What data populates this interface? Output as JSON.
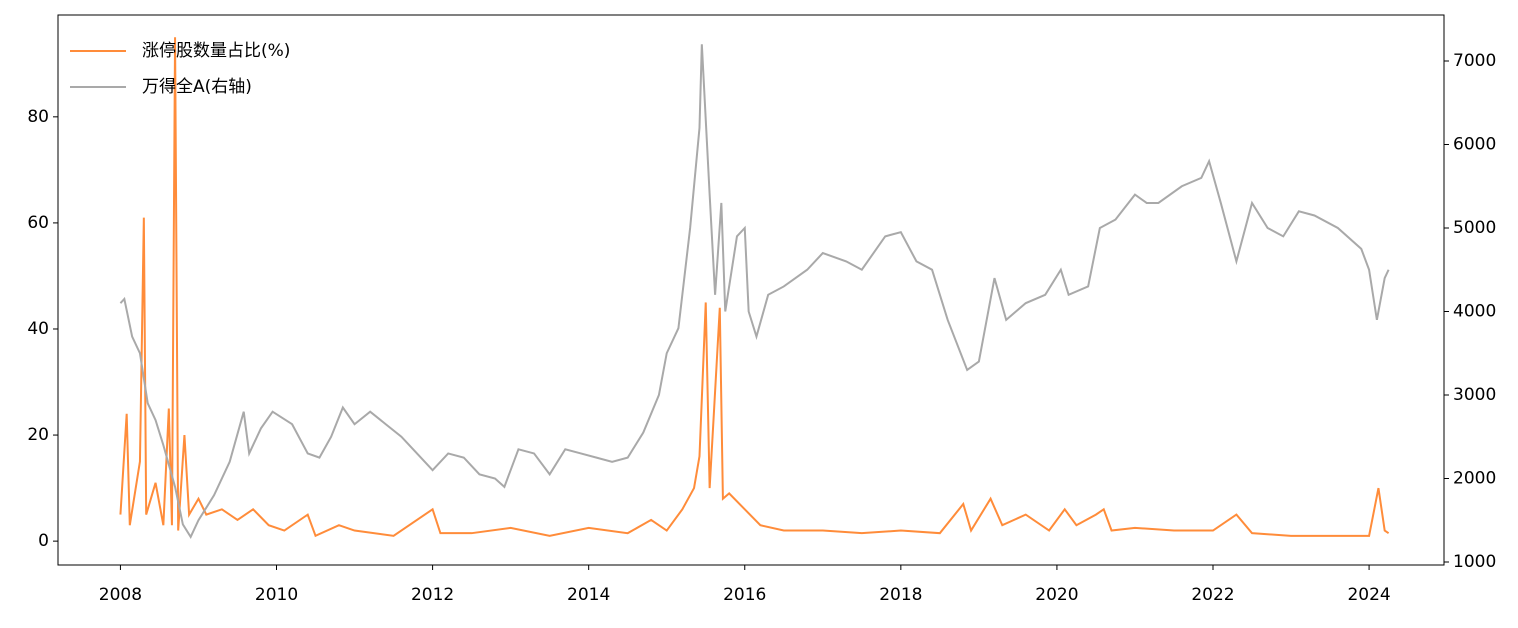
{
  "chart_data": {
    "type": "line",
    "xlim": [
      2007.2,
      2024.96
    ],
    "xticks": [
      2008,
      2010,
      2012,
      2014,
      2016,
      2018,
      2020,
      2022,
      2024
    ],
    "ylim": [
      -4.5,
      99.2
    ],
    "yticks": [
      0,
      20,
      40,
      60,
      80
    ],
    "y2lim": [
      964,
      7551
    ],
    "y2ticks": [
      1000,
      2000,
      3000,
      4000,
      5000,
      6000,
      7000
    ],
    "legend": "upper left",
    "grid": false,
    "series": [
      {
        "name": "涨停股数量占比(%)",
        "color": "#ff8c3a",
        "x": [
          2008.0,
          2008.08,
          2008.12,
          2008.25,
          2008.3,
          2008.33,
          2008.45,
          2008.55,
          2008.62,
          2008.66,
          2008.7,
          2008.74,
          2008.82,
          2008.88,
          2009.0,
          2009.1,
          2009.3,
          2009.5,
          2009.7,
          2009.9,
          2010.1,
          2010.4,
          2010.5,
          2010.8,
          2011.0,
          2011.5,
          2012.0,
          2012.1,
          2012.5,
          2013.0,
          2013.5,
          2014.0,
          2014.5,
          2014.8,
          2015.0,
          2015.2,
          2015.35,
          2015.42,
          2015.5,
          2015.55,
          2015.6,
          2015.68,
          2015.72,
          2015.8,
          2016.0,
          2016.2,
          2016.5,
          2017.0,
          2017.5,
          2018.0,
          2018.5,
          2018.8,
          2018.9,
          2019.15,
          2019.3,
          2019.6,
          2019.9,
          2020.1,
          2020.25,
          2020.5,
          2020.6,
          2020.7,
          2021.0,
          2021.5,
          2022.0,
          2022.3,
          2022.5,
          2023.0,
          2023.5,
          2024.0,
          2024.12,
          2024.2,
          2024.25
        ],
        "values": [
          5,
          24,
          3,
          15,
          61,
          5,
          11,
          3,
          25,
          3,
          95,
          2,
          20,
          5,
          8,
          5,
          6,
          4,
          6,
          3,
          2,
          5,
          1,
          3,
          2,
          1,
          6,
          1.5,
          1.5,
          2.5,
          1,
          2.5,
          1.5,
          4,
          2,
          6,
          10,
          16,
          45,
          10,
          23,
          44,
          8,
          9,
          6,
          3,
          2,
          2,
          1.5,
          2,
          1.5,
          7,
          2,
          8,
          3,
          5,
          2,
          6,
          3,
          5,
          6,
          2,
          2.5,
          2,
          2,
          5,
          1.5,
          1,
          1,
          1,
          10,
          2,
          1.5
        ]
      },
      {
        "name": "万得全A(右轴)",
        "color": "#a9a9a9",
        "axis": "y2",
        "x": [
          2008.0,
          2008.05,
          2008.15,
          2008.25,
          2008.35,
          2008.45,
          2008.55,
          2008.7,
          2008.8,
          2008.9,
          2009.0,
          2009.2,
          2009.4,
          2009.58,
          2009.65,
          2009.8,
          2009.95,
          2010.2,
          2010.4,
          2010.55,
          2010.7,
          2010.85,
          2011.0,
          2011.2,
          2011.4,
          2011.6,
          2011.8,
          2012.0,
          2012.2,
          2012.4,
          2012.6,
          2012.8,
          2012.92,
          2013.1,
          2013.3,
          2013.5,
          2013.7,
          2013.9,
          2014.1,
          2014.3,
          2014.5,
          2014.7,
          2014.9,
          2015.0,
          2015.15,
          2015.3,
          2015.42,
          2015.45,
          2015.55,
          2015.62,
          2015.7,
          2015.75,
          2015.9,
          2016.0,
          2016.05,
          2016.15,
          2016.3,
          2016.5,
          2016.8,
          2017.0,
          2017.3,
          2017.5,
          2017.8,
          2018.0,
          2018.2,
          2018.4,
          2018.6,
          2018.85,
          2019.0,
          2019.2,
          2019.35,
          2019.6,
          2019.85,
          2020.05,
          2020.15,
          2020.4,
          2020.55,
          2020.75,
          2021.0,
          2021.15,
          2021.3,
          2021.6,
          2021.85,
          2021.95,
          2022.1,
          2022.3,
          2022.5,
          2022.7,
          2022.9,
          2023.1,
          2023.3,
          2023.6,
          2023.9,
          2024.0,
          2024.1,
          2024.2,
          2024.25
        ],
        "values": [
          4100,
          4150,
          3700,
          3500,
          2900,
          2700,
          2400,
          1900,
          1450,
          1300,
          1500,
          1800,
          2200,
          2800,
          2300,
          2600,
          2800,
          2650,
          2300,
          2250,
          2500,
          2850,
          2650,
          2800,
          2650,
          2500,
          2300,
          2100,
          2300,
          2250,
          2050,
          2000,
          1900,
          2350,
          2300,
          2050,
          2350,
          2300,
          2250,
          2200,
          2250,
          2550,
          3000,
          3500,
          3800,
          5000,
          6200,
          7200,
          5400,
          4200,
          5300,
          4000,
          4900,
          5000,
          4000,
          3700,
          4200,
          4300,
          4500,
          4700,
          4600,
          4500,
          4900,
          4950,
          4600,
          4500,
          3900,
          3300,
          3400,
          4400,
          3900,
          4100,
          4200,
          4500,
          4200,
          4300,
          5000,
          5100,
          5400,
          5300,
          5300,
          5500,
          5600,
          5800,
          5300,
          4600,
          5300,
          5000,
          4900,
          5200,
          5150,
          5000,
          4750,
          4500,
          3900,
          4400,
          4500
        ]
      }
    ]
  }
}
